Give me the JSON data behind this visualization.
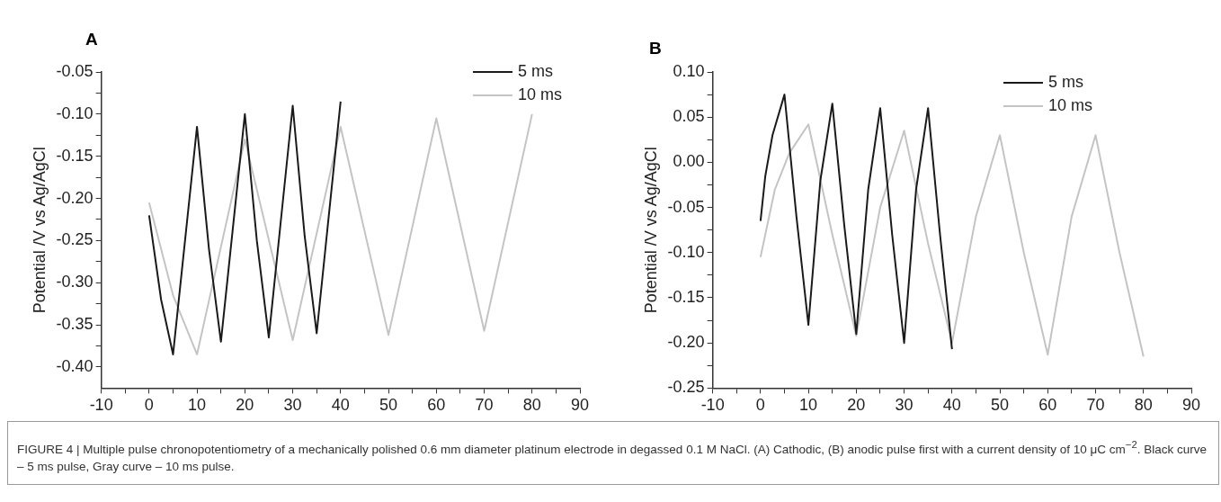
{
  "chart_data": [
    {
      "type": "line",
      "title": "A",
      "ylabel": "Potential /V vs Ag/AgCl",
      "legend": "top right",
      "grid": false,
      "marker": "none",
      "line_style": "solid",
      "xlim": [
        -10,
        90
      ],
      "xticks": [
        -10,
        {
          "value": -5,
          "label": null
        },
        0,
        {
          "value": 5,
          "label": null
        },
        10,
        {
          "value": 15,
          "label": null
        },
        20,
        {
          "value": 25,
          "label": null
        },
        30,
        {
          "value": 35,
          "label": null
        },
        40,
        {
          "value": 45,
          "label": null
        },
        50,
        {
          "value": 55,
          "label": null
        },
        60,
        {
          "value": 65,
          "label": null
        },
        70,
        {
          "value": 75,
          "label": null
        },
        80,
        {
          "value": 85,
          "label": null
        },
        90
      ],
      "ylim": [
        -0.425,
        -0.05
      ],
      "yticks": [
        {
          "value": -0.4,
          "label": "-0.40"
        },
        {
          "value": -0.375,
          "label": null
        },
        {
          "value": -0.35,
          "label": "-0.35"
        },
        {
          "value": -0.325,
          "label": null
        },
        {
          "value": -0.3,
          "label": "-0.30"
        },
        {
          "value": -0.275,
          "label": null
        },
        {
          "value": -0.25,
          "label": "-0.25"
        },
        {
          "value": -0.225,
          "label": null
        },
        {
          "value": -0.2,
          "label": "-0.20"
        },
        {
          "value": -0.175,
          "label": null
        },
        {
          "value": -0.15,
          "label": "-0.15"
        },
        {
          "value": -0.125,
          "label": null
        },
        {
          "value": -0.1,
          "label": "-0.10"
        },
        {
          "value": -0.075,
          "label": null
        },
        {
          "value": -0.05,
          "label": "-0.05"
        }
      ],
      "series": [
        {
          "name": "5 ms",
          "color": "#1a1a1a",
          "x": [
            0,
            2.5,
            5,
            10,
            12.5,
            15,
            20,
            22.5,
            25,
            30,
            32.5,
            35,
            40
          ],
          "values": [
            -0.22,
            -0.32,
            -0.385,
            -0.115,
            -0.26,
            -0.37,
            -0.1,
            -0.25,
            -0.365,
            -0.09,
            -0.245,
            -0.36,
            -0.085
          ]
        },
        {
          "name": "10 ms",
          "color": "#c4c4c4",
          "x": [
            0,
            5,
            10,
            20,
            30,
            40,
            50,
            60,
            70,
            80
          ],
          "values": [
            -0.205,
            -0.315,
            -0.385,
            -0.13,
            -0.368,
            -0.115,
            -0.362,
            -0.105,
            -0.357,
            -0.1
          ]
        }
      ],
      "annotations": [
        "FIGURE 4 | Multiple pulse chronopotentiometry of a mechanically polished 0.6 mm diameter platinum electrode in degassed 0.1 M NaCl. (A) Cathodic, (B) anodic pulse first with a current density of 10 μC cm$^{−2}$. Black curve – 5 ms pulse, Gray curve – 10 ms pulse."
      ]
    },
    {
      "type": "line",
      "title": "B",
      "ylabel": "Potential /V vs Ag/AgCl",
      "legend": "top right",
      "grid": false,
      "marker": "none",
      "line_style": "solid",
      "xlim": [
        -10,
        90
      ],
      "xticks": [
        -10,
        {
          "value": -5,
          "label": null
        },
        0,
        {
          "value": 5,
          "label": null
        },
        10,
        {
          "value": 15,
          "label": null
        },
        20,
        {
          "value": 25,
          "label": null
        },
        30,
        {
          "value": 35,
          "label": null
        },
        40,
        {
          "value": 45,
          "label": null
        },
        50,
        {
          "value": 55,
          "label": null
        },
        60,
        {
          "value": 65,
          "label": null
        },
        70,
        {
          "value": 75,
          "label": null
        },
        80,
        {
          "value": 85,
          "label": null
        },
        90
      ],
      "ylim": [
        -0.25,
        0.1
      ],
      "yticks": [
        {
          "value": -0.25,
          "label": "-0.25"
        },
        {
          "value": -0.225,
          "label": null
        },
        {
          "value": -0.2,
          "label": "-0.20"
        },
        {
          "value": -0.175,
          "label": null
        },
        {
          "value": -0.15,
          "label": "-0.15"
        },
        {
          "value": -0.125,
          "label": null
        },
        {
          "value": -0.1,
          "label": "-0.10"
        },
        {
          "value": -0.075,
          "label": null
        },
        {
          "value": -0.05,
          "label": "-0.05"
        },
        {
          "value": -0.025,
          "label": null
        },
        {
          "value": 0,
          "label": "0.00"
        },
        {
          "value": 0.025,
          "label": null
        },
        {
          "value": 0.05,
          "label": "0.05"
        },
        {
          "value": 0.075,
          "label": null
        },
        {
          "value": 0.1,
          "label": "0.10"
        }
      ],
      "series": [
        {
          "name": "5 ms",
          "color": "#1a1a1a",
          "x": [
            0,
            1,
            2.5,
            5,
            7.5,
            10,
            12.5,
            15,
            17.5,
            20,
            22.5,
            25,
            27.5,
            30,
            32.5,
            35,
            37.5,
            40
          ],
          "values": [
            -0.065,
            -0.015,
            0.03,
            0.075,
            -0.06,
            -0.18,
            -0.02,
            0.065,
            -0.07,
            -0.19,
            -0.03,
            0.06,
            -0.08,
            -0.2,
            -0.03,
            0.06,
            -0.08,
            -0.207
          ]
        },
        {
          "name": "10 ms",
          "color": "#c4c4c4",
          "x": [
            0,
            3,
            6,
            10,
            15,
            20,
            25,
            30,
            35,
            40,
            45,
            50,
            55,
            60,
            65,
            70,
            75,
            80
          ],
          "values": [
            -0.105,
            -0.03,
            0.01,
            0.042,
            -0.08,
            -0.192,
            -0.05,
            0.035,
            -0.09,
            -0.2,
            -0.06,
            0.03,
            -0.1,
            -0.213,
            -0.06,
            0.03,
            -0.1,
            -0.215
          ]
        }
      ]
    }
  ]
}
